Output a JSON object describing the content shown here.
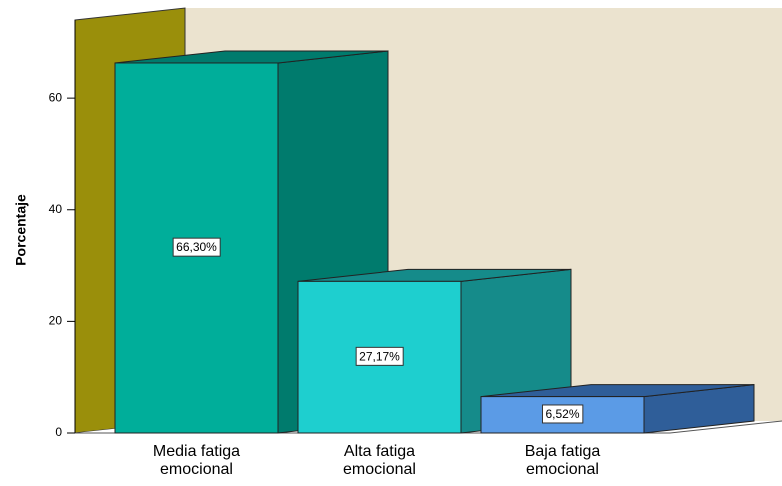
{
  "chart_data": {
    "type": "bar3d",
    "y_label": "Porcentaje",
    "categories": [
      "Media fatiga emocional",
      "Alta fatiga emocional",
      "Baja fatiga emocional"
    ],
    "values": [
      66.3,
      27.17,
      6.52
    ],
    "value_labels": [
      "66,30%",
      "27,17%",
      "6,52%"
    ],
    "colors": [
      "#00ae9a",
      "#1ecfcf",
      "#5b9be6"
    ],
    "side_colors": [
      "#007b6d",
      "#158b8a",
      "#2f5e99"
    ],
    "ylim": [
      0,
      74
    ],
    "yticks": [
      0,
      20,
      40,
      60
    ]
  }
}
